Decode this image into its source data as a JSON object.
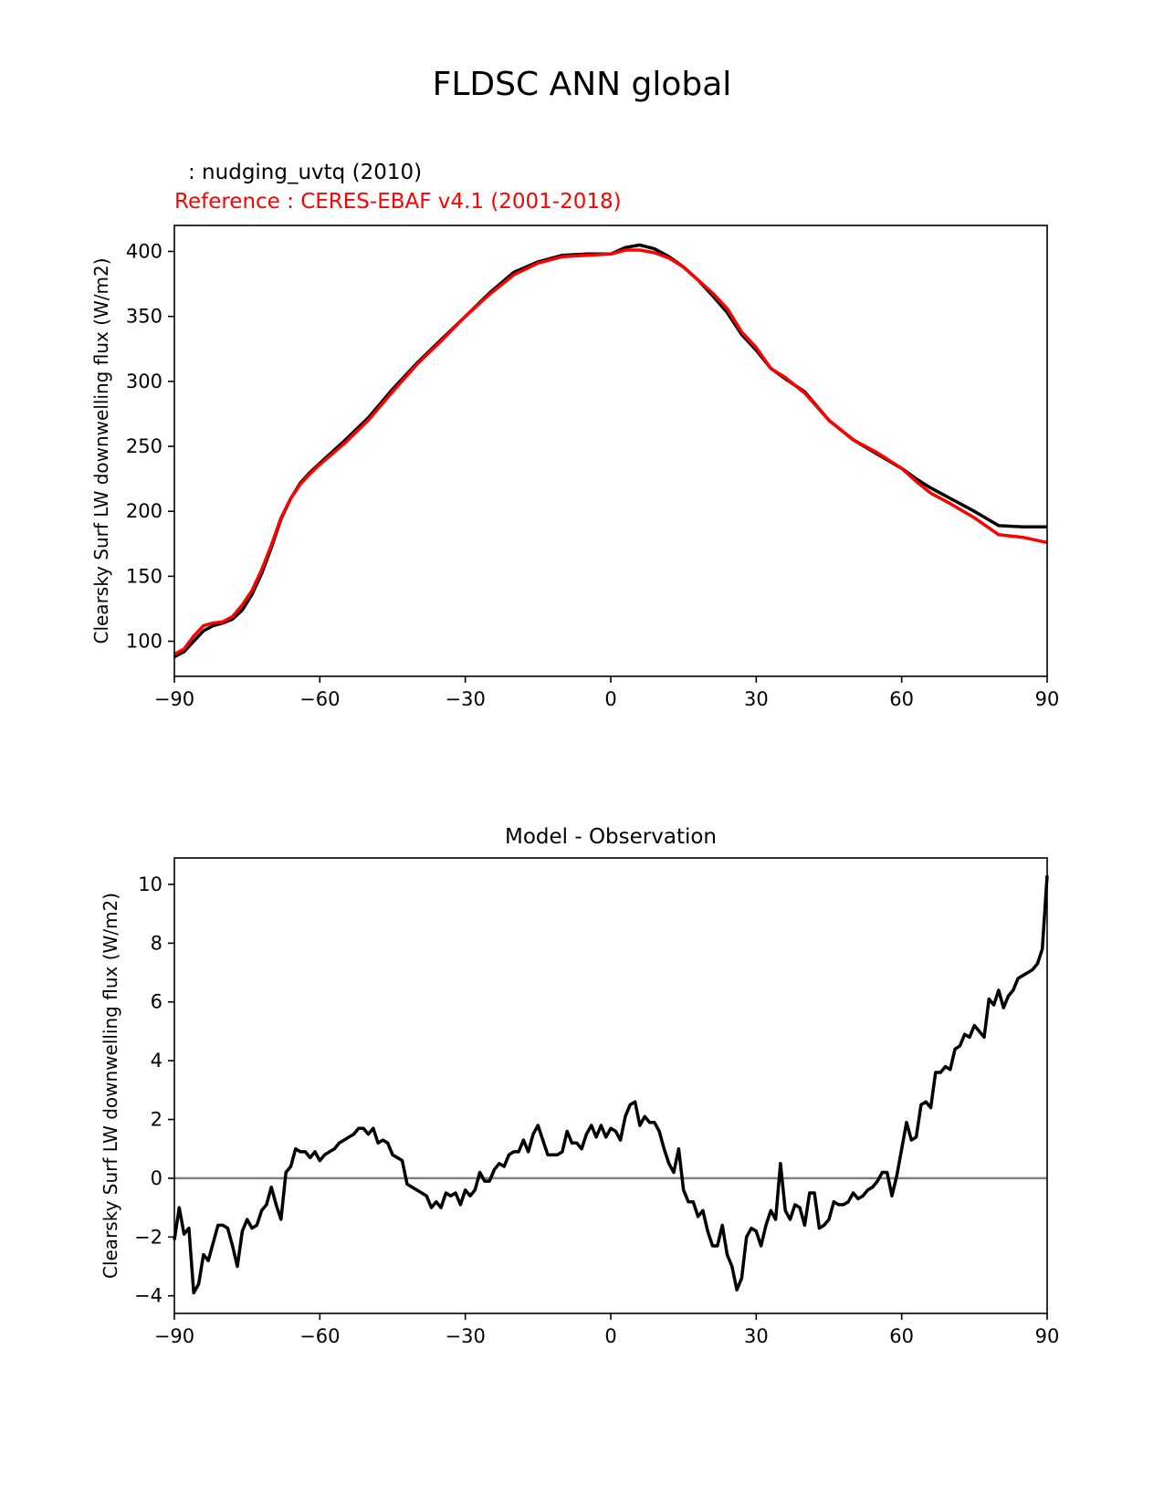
{
  "figure": {
    "title": "FLDSC ANN global",
    "test_label": " : nudging_uvtq (2010)",
    "ref_label": "Reference : CERES-EBAF v4.1 (2001-2018)",
    "diff_title": "Model - Observation"
  },
  "chart_data": [
    {
      "type": "line",
      "title": "FLDSC ANN global",
      "xlabel": "",
      "ylabel": "Clearsky Surf LW downwelling flux (W/m2)",
      "xlim": [
        -90,
        90
      ],
      "ylim": [
        73,
        420
      ],
      "xticks": [
        -90,
        -60,
        -30,
        0,
        30,
        60,
        90
      ],
      "xtick_labels": [
        "−90",
        "−60",
        "−30",
        "0",
        "30",
        "60",
        "90"
      ],
      "yticks": [
        100,
        150,
        200,
        250,
        300,
        350,
        400
      ],
      "ytick_labels": [
        "100",
        "150",
        "200",
        "250",
        "300",
        "350",
        "400"
      ],
      "grid": false,
      "series": [
        {
          "name": "nudging_uvtq (2010)",
          "color": "#000000",
          "x": [
            -90,
            -88,
            -86,
            -84,
            -82,
            -80,
            -78,
            -76,
            -74,
            -72,
            -70,
            -68,
            -66,
            -64,
            -62,
            -60,
            -55,
            -50,
            -45,
            -40,
            -35,
            -30,
            -25,
            -20,
            -15,
            -10,
            -5,
            0,
            3,
            6,
            9,
            12,
            15,
            18,
            21,
            24,
            27,
            30,
            33,
            36,
            40,
            45,
            50,
            55,
            60,
            63,
            66,
            70,
            75,
            80,
            85,
            90
          ],
          "y": [
            88,
            92,
            100,
            108,
            112,
            114,
            117,
            124,
            136,
            152,
            172,
            194,
            210,
            222,
            230,
            237,
            254,
            272,
            294,
            314,
            332,
            350,
            368,
            384,
            392,
            397,
            398,
            398,
            403,
            405,
            402,
            396,
            388,
            378,
            366,
            353,
            336,
            324,
            310,
            302,
            292,
            270,
            255,
            244,
            233,
            225,
            218,
            210,
            200,
            189,
            188,
            188
          ],
          "values_approx": true
        },
        {
          "name": "CERES-EBAF v4.1 (2001-2018)",
          "color": "#ff0000",
          "x": [
            -90,
            -88,
            -86,
            -84,
            -82,
            -80,
            -78,
            -76,
            -74,
            -72,
            -70,
            -68,
            -66,
            -64,
            -62,
            -60,
            -55,
            -50,
            -45,
            -40,
            -35,
            -30,
            -25,
            -20,
            -15,
            -10,
            -5,
            0,
            3,
            6,
            9,
            12,
            15,
            18,
            21,
            24,
            27,
            30,
            33,
            36,
            40,
            45,
            50,
            55,
            60,
            63,
            66,
            70,
            75,
            80,
            85,
            90
          ],
          "y": [
            90,
            94,
            104,
            112,
            114,
            115,
            119,
            128,
            139,
            155,
            174,
            195,
            210,
            221,
            229,
            236,
            252,
            270,
            292,
            313,
            331,
            350,
            367,
            382,
            391,
            396,
            397,
            398,
            401,
            401,
            399,
            395,
            388,
            378,
            368,
            356,
            338,
            326,
            310,
            303,
            291,
            270,
            255,
            245,
            233,
            223,
            214,
            206,
            195,
            182,
            180,
            176
          ],
          "values_approx": true
        }
      ]
    },
    {
      "type": "line",
      "title": "Model - Observation",
      "xlabel": "",
      "ylabel": "Clearsky Surf LW downwelling flux (W/m2)",
      "xlim": [
        -90,
        90
      ],
      "ylim": [
        -4.6,
        10.9
      ],
      "xticks": [
        -90,
        -60,
        -30,
        0,
        30,
        60,
        90
      ],
      "xtick_labels": [
        "−90",
        "−60",
        "−30",
        "0",
        "30",
        "60",
        "90"
      ],
      "yticks": [
        -4,
        -2,
        0,
        2,
        4,
        6,
        8,
        10
      ],
      "ytick_labels": [
        "−4",
        "−2",
        "0",
        "2",
        "4",
        "6",
        "8",
        "10"
      ],
      "grid": false,
      "zero_line": {
        "y": 0,
        "color": "#808080"
      },
      "series": [
        {
          "color": "#000000",
          "x": [
            -90,
            -89,
            -88,
            -87,
            -86,
            -85,
            -84,
            -83,
            -82,
            -81,
            -80,
            -79,
            -78,
            -77,
            -76,
            -75,
            -74,
            -73,
            -72,
            -71,
            -70,
            -69,
            -68,
            -67,
            -66,
            -65,
            -64,
            -63,
            -62,
            -61,
            -60,
            -59,
            -58,
            -57,
            -56,
            -55,
            -54,
            -53,
            -52,
            -51,
            -50,
            -49,
            -48,
            -47,
            -46,
            -45,
            -44,
            -43,
            -42,
            -41,
            -40,
            -39,
            -38,
            -37,
            -36,
            -35,
            -34,
            -33,
            -32,
            -31,
            -30,
            -29,
            -28,
            -27,
            -26,
            -25,
            -24,
            -23,
            -22,
            -21,
            -20,
            -19,
            -18,
            -17,
            -16,
            -15,
            -14,
            -13,
            -12,
            -11,
            -10,
            -9,
            -8,
            -7,
            -6,
            -5,
            -4,
            -3,
            -2,
            -1,
            0,
            1,
            2,
            3,
            4,
            5,
            6,
            7,
            8,
            9,
            10,
            11,
            12,
            13,
            14,
            15,
            16,
            17,
            18,
            19,
            20,
            21,
            22,
            23,
            24,
            25,
            26,
            27,
            28,
            29,
            30,
            31,
            32,
            33,
            34,
            35,
            36,
            37,
            38,
            39,
            40,
            41,
            42,
            43,
            44,
            45,
            46,
            47,
            48,
            49,
            50,
            51,
            52,
            53,
            54,
            55,
            56,
            57,
            58,
            59,
            60,
            61,
            62,
            63,
            64,
            65,
            66,
            67,
            68,
            69,
            70,
            71,
            72,
            73,
            74,
            75,
            76,
            77,
            78,
            79,
            80,
            81,
            82,
            83,
            84,
            85,
            86,
            87,
            88,
            89,
            90
          ],
          "y": [
            -2.1,
            -1.0,
            -1.9,
            -1.7,
            -3.9,
            -3.6,
            -2.6,
            -2.8,
            -2.2,
            -1.6,
            -1.6,
            -1.7,
            -2.3,
            -3.0,
            -1.8,
            -1.4,
            -1.7,
            -1.6,
            -1.1,
            -0.9,
            -0.3,
            -0.9,
            -1.4,
            0.2,
            0.4,
            1.0,
            0.9,
            0.9,
            0.7,
            0.9,
            0.6,
            0.8,
            0.9,
            1.0,
            1.2,
            1.3,
            1.4,
            1.5,
            1.7,
            1.7,
            1.5,
            1.7,
            1.2,
            1.3,
            1.2,
            0.8,
            0.7,
            0.6,
            -0.2,
            -0.3,
            -0.4,
            -0.5,
            -0.6,
            -1.0,
            -0.8,
            -1.0,
            -0.5,
            -0.6,
            -0.5,
            -0.9,
            -0.4,
            -0.6,
            -0.4,
            0.2,
            -0.1,
            -0.1,
            0.3,
            0.5,
            0.4,
            0.8,
            0.9,
            0.9,
            1.3,
            0.9,
            1.5,
            1.8,
            1.3,
            0.8,
            0.8,
            0.8,
            0.9,
            1.6,
            1.2,
            1.2,
            1.0,
            1.5,
            1.8,
            1.4,
            1.8,
            1.4,
            1.7,
            1.6,
            1.3,
            2.1,
            2.5,
            2.6,
            1.8,
            2.1,
            1.9,
            1.9,
            1.6,
            1.0,
            0.5,
            0.2,
            1.0,
            -0.4,
            -0.8,
            -0.8,
            -1.3,
            -1.1,
            -1.8,
            -2.3,
            -2.3,
            -1.6,
            -2.6,
            -3.0,
            -3.8,
            -3.4,
            -2.0,
            -1.7,
            -1.8,
            -2.3,
            -1.6,
            -1.1,
            -1.4,
            0.5,
            -1.1,
            -1.4,
            -0.9,
            -1.0,
            -1.6,
            -0.5,
            -0.5,
            -1.7,
            -1.6,
            -1.4,
            -0.8,
            -0.9,
            -0.9,
            -0.8,
            -0.5,
            -0.7,
            -0.6,
            -0.4,
            -0.3,
            -0.1,
            0.2,
            0.2,
            -0.6,
            0.1,
            1.0,
            1.9,
            1.3,
            1.4,
            2.5,
            2.6,
            2.4,
            3.6,
            3.6,
            3.8,
            3.7,
            4.4,
            4.5,
            4.9,
            4.8,
            5.2,
            5.0,
            4.8,
            6.1,
            5.9,
            6.4,
            5.8,
            6.2,
            6.4,
            6.8,
            6.9,
            7.0,
            7.1,
            7.3,
            7.8,
            10.3
          ],
          "values_approx": true
        }
      ]
    }
  ]
}
